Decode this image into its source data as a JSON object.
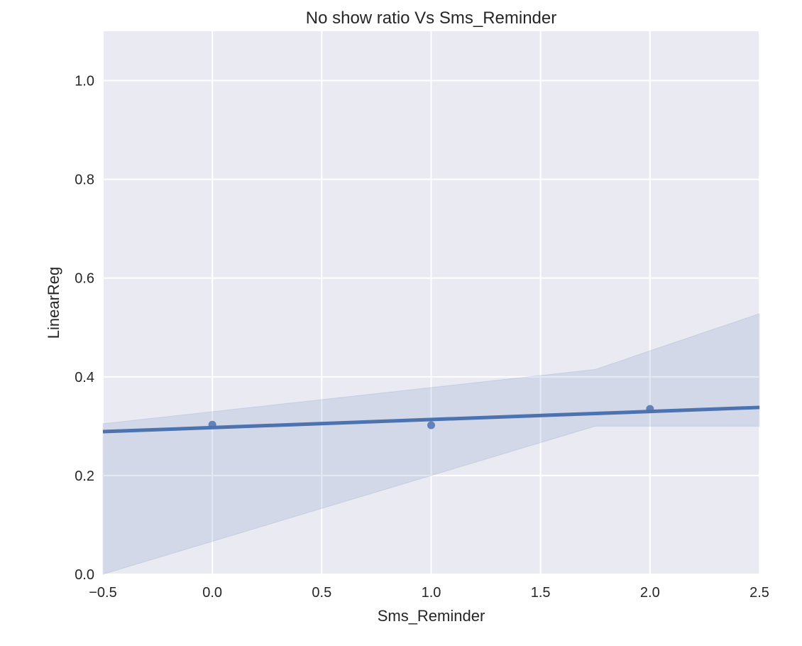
{
  "chart_data": {
    "type": "scatter",
    "title": "No show ratio Vs Sms_Reminder",
    "xlabel": "Sms_Reminder",
    "ylabel": "LinearReg",
    "xlim": [
      -0.5,
      2.5
    ],
    "ylim": [
      0.0,
      1.1
    ],
    "xticks": [
      "−0.5",
      "0.0",
      "0.5",
      "1.0",
      "1.5",
      "2.0",
      "2.5"
    ],
    "yticks": [
      "0.0",
      "0.2",
      "0.4",
      "0.6",
      "0.8",
      "1.0"
    ],
    "grid": true,
    "points": [
      {
        "x": 0,
        "y": 0.303
      },
      {
        "x": 1,
        "y": 0.302
      },
      {
        "x": 2,
        "y": 0.335
      }
    ],
    "regression": {
      "x": [
        -0.5,
        2.5
      ],
      "y": [
        0.289,
        0.338
      ]
    },
    "confidence_band": {
      "x": [
        -0.5,
        1.75,
        2.5
      ],
      "upper": [
        0.305,
        0.415,
        0.528
      ],
      "lower": [
        0.0,
        0.3,
        0.3
      ]
    },
    "colors": {
      "background": "#EAEAF2",
      "grid": "#FFFFFF",
      "series": "#4C72B0",
      "band": "#4C72B0"
    }
  }
}
